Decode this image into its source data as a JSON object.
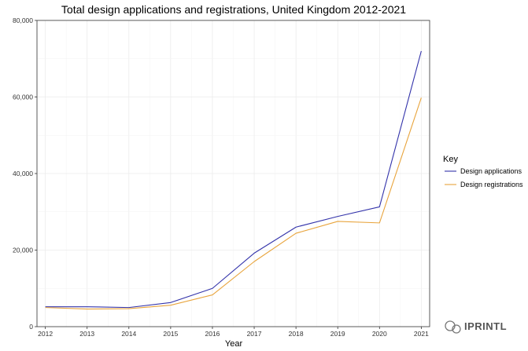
{
  "chart_data": {
    "type": "line",
    "title": "Total design applications and registrations, United Kingdom 2012-2021",
    "xlabel": "Year",
    "ylabel": "",
    "x": [
      2012,
      2013,
      2014,
      2015,
      2016,
      2017,
      2018,
      2019,
      2020,
      2021
    ],
    "ylim": [
      0,
      80000
    ],
    "yticks": [
      0,
      20000,
      40000,
      60000,
      80000
    ],
    "ytick_labels": [
      "0",
      "20,000",
      "40,000",
      "60,000",
      "80,000"
    ],
    "grid": true,
    "legend": {
      "title": "Key",
      "position": "right"
    },
    "series": [
      {
        "name": "Design applications",
        "color": "#3333aa",
        "values": [
          5200,
          5200,
          5000,
          6300,
          10000,
          19200,
          26000,
          28800,
          31300,
          72000
        ]
      },
      {
        "name": "Design registrations",
        "color": "#e8a43c",
        "values": [
          5000,
          4600,
          4700,
          5600,
          8300,
          17000,
          24400,
          27500,
          27100,
          59800
        ]
      }
    ]
  },
  "watermark": {
    "text": "IPRINTL",
    "icon": "wechat-icon"
  }
}
